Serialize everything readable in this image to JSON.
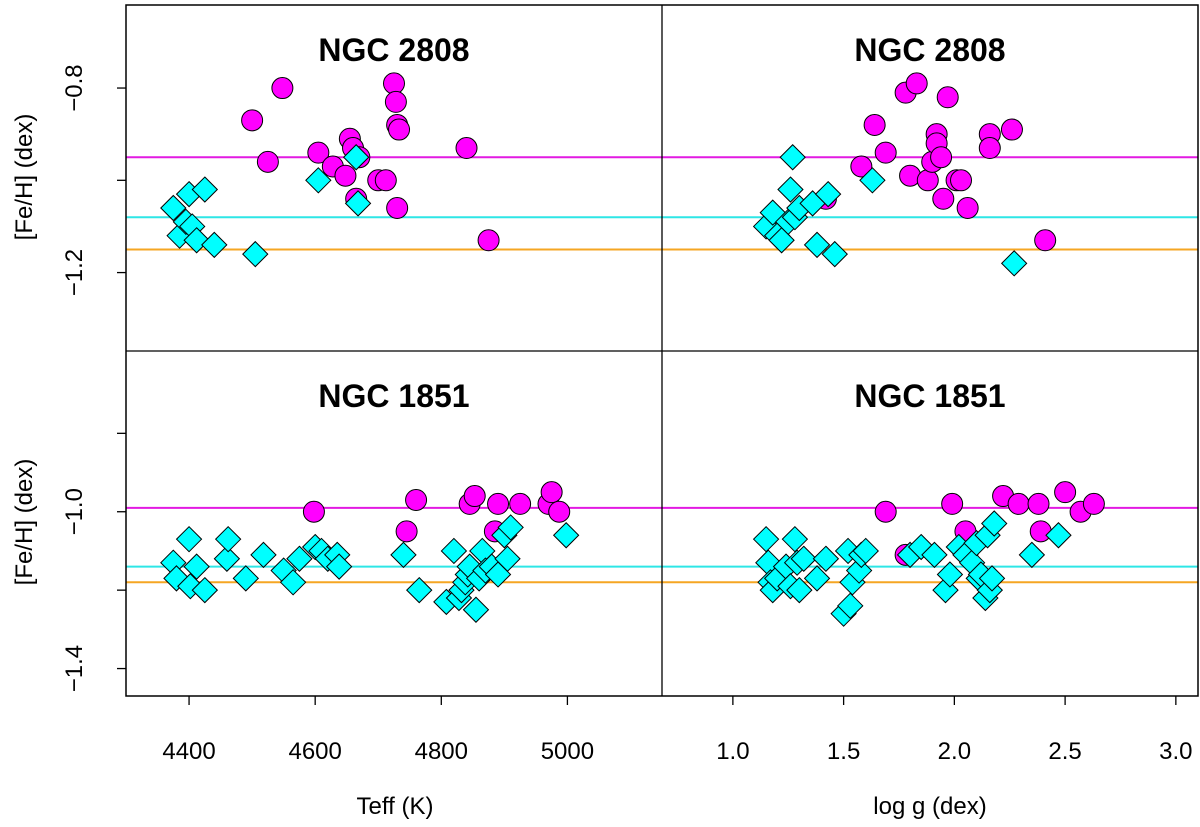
{
  "colors": {
    "magenta": "#ff00ff",
    "cyan": "#00ffff",
    "orange": "#ffa500",
    "magenta_line": "#e21ae2",
    "cyan_line": "#2ee6e6",
    "orange_line": "#f5a623"
  },
  "chart_data": [
    {
      "type": "scatter",
      "title": "NGC 2808",
      "xlabel": "Teff (K)",
      "ylabel": "[Fe/H] (dex)",
      "xlim": [
        4300,
        5150
      ],
      "ylim": [
        -1.37,
        -0.62
      ],
      "xticks": [
        4400,
        4600,
        4800,
        5000
      ],
      "yticks": [
        -1.2,
        -0.8
      ],
      "ytick_labels": [
        "−1.2",
        "−0.8"
      ],
      "hlines": [
        {
          "name": "magenta",
          "y": -0.95
        },
        {
          "name": "cyan",
          "y": -1.08
        },
        {
          "name": "orange",
          "y": -1.15
        }
      ],
      "series": [
        {
          "name": "magenta",
          "marker": "circle",
          "points": [
            [
              4500,
              -0.87
            ],
            [
              4525,
              -0.96
            ],
            [
              4548,
              -0.8
            ],
            [
              4605,
              -0.94
            ],
            [
              4628,
              -0.97
            ],
            [
              4648,
              -0.99
            ],
            [
              4655,
              -0.91
            ],
            [
              4660,
              -0.93
            ],
            [
              4665,
              -1.04
            ],
            [
              4670,
              -0.95
            ],
            [
              4700,
              -1.0
            ],
            [
              4712,
              -1.0
            ],
            [
              4725,
              -0.79
            ],
            [
              4728,
              -0.83
            ],
            [
              4730,
              -0.88
            ],
            [
              4733,
              -0.89
            ],
            [
              4730,
              -1.06
            ],
            [
              4840,
              -0.93
            ],
            [
              4875,
              -1.13
            ]
          ]
        },
        {
          "name": "cyan",
          "marker": "diamond",
          "points": [
            [
              4375,
              -1.06
            ],
            [
              4385,
              -1.12
            ],
            [
              4395,
              -1.09
            ],
            [
              4400,
              -1.03
            ],
            [
              4405,
              -1.1
            ],
            [
              4412,
              -1.13
            ],
            [
              4425,
              -1.02
            ],
            [
              4440,
              -1.14
            ],
            [
              4505,
              -1.16
            ],
            [
              4605,
              -1.0
            ],
            [
              4665,
              -0.95
            ],
            [
              4668,
              -1.05
            ]
          ]
        }
      ]
    },
    {
      "type": "scatter",
      "title": "NGC 2808",
      "xlabel": "log g (dex)",
      "ylabel": "",
      "xlim": [
        0.68,
        3.1
      ],
      "ylim": [
        -1.37,
        -0.62
      ],
      "xticks": [
        1.0,
        1.5,
        2.0,
        2.5,
        3.0
      ],
      "xtick_labels": [
        "1.0",
        "1.5",
        "2.0",
        "2.5",
        "3.0"
      ],
      "yticks": [],
      "hlines": [
        {
          "name": "magenta",
          "y": -0.95
        },
        {
          "name": "cyan",
          "y": -1.08
        },
        {
          "name": "orange",
          "y": -1.15
        }
      ],
      "series": [
        {
          "name": "magenta",
          "marker": "circle",
          "points": [
            [
              1.42,
              -1.04
            ],
            [
              1.58,
              -0.97
            ],
            [
              1.64,
              -0.88
            ],
            [
              1.69,
              -0.94
            ],
            [
              1.78,
              -0.81
            ],
            [
              1.8,
              -0.99
            ],
            [
              1.83,
              -0.79
            ],
            [
              1.88,
              -1.0
            ],
            [
              1.9,
              -0.96
            ],
            [
              1.92,
              -0.9
            ],
            [
              1.92,
              -0.92
            ],
            [
              1.94,
              -0.95
            ],
            [
              1.95,
              -1.04
            ],
            [
              1.97,
              -0.82
            ],
            [
              2.01,
              -1.0
            ],
            [
              2.03,
              -1.0
            ],
            [
              2.06,
              -1.06
            ],
            [
              2.16,
              -0.9
            ],
            [
              2.16,
              -0.93
            ],
            [
              2.26,
              -0.89
            ],
            [
              2.41,
              -1.13
            ]
          ]
        },
        {
          "name": "cyan",
          "marker": "diamond",
          "points": [
            [
              1.15,
              -1.1
            ],
            [
              1.18,
              -1.07
            ],
            [
              1.2,
              -1.12
            ],
            [
              1.22,
              -1.13
            ],
            [
              1.25,
              -1.09
            ],
            [
              1.26,
              -1.02
            ],
            [
              1.27,
              -0.95
            ],
            [
              1.28,
              -1.08
            ],
            [
              1.3,
              -1.06
            ],
            [
              1.36,
              -1.05
            ],
            [
              1.38,
              -1.14
            ],
            [
              1.43,
              -1.03
            ],
            [
              1.46,
              -1.16
            ],
            [
              1.63,
              -1.0
            ],
            [
              2.27,
              -1.18
            ]
          ]
        }
      ]
    },
    {
      "type": "scatter",
      "title": "NGC 1851",
      "xlabel": "Teff (K)",
      "ylabel": "[Fe/H] (dex)",
      "xlim": [
        4300,
        5150
      ],
      "ylim": [
        -1.47,
        -0.59
      ],
      "xticks": [
        4400,
        4600,
        4800,
        5000
      ],
      "yticks": [
        -1.4,
        -1.0
      ],
      "ytick_labels": [
        "−1.4",
        "−1.0"
      ],
      "hlines": [
        {
          "name": "magenta",
          "y": -0.99
        },
        {
          "name": "cyan",
          "y": -1.14
        },
        {
          "name": "orange",
          "y": -1.18
        }
      ],
      "series": [
        {
          "name": "magenta",
          "marker": "circle",
          "points": [
            [
              4598,
              -1.0
            ],
            [
              4745,
              -1.05
            ],
            [
              4760,
              -0.97
            ],
            [
              4845,
              -0.98
            ],
            [
              4853,
              -0.96
            ],
            [
              4885,
              -1.05
            ],
            [
              4890,
              -0.98
            ],
            [
              4925,
              -0.98
            ],
            [
              4970,
              -0.98
            ],
            [
              4975,
              -0.95
            ],
            [
              4987,
              -1.0
            ]
          ]
        },
        {
          "name": "cyan",
          "marker": "diamond",
          "points": [
            [
              4375,
              -1.13
            ],
            [
              4380,
              -1.17
            ],
            [
              4400,
              -1.07
            ],
            [
              4402,
              -1.19
            ],
            [
              4412,
              -1.14
            ],
            [
              4425,
              -1.2
            ],
            [
              4460,
              -1.12
            ],
            [
              4462,
              -1.07
            ],
            [
              4490,
              -1.17
            ],
            [
              4518,
              -1.11
            ],
            [
              4550,
              -1.15
            ],
            [
              4565,
              -1.18
            ],
            [
              4575,
              -1.12
            ],
            [
              4600,
              -1.09
            ],
            [
              4610,
              -1.1
            ],
            [
              4620,
              -1.12
            ],
            [
              4635,
              -1.11
            ],
            [
              4638,
              -1.14
            ],
            [
              4740,
              -1.11
            ],
            [
              4765,
              -1.2
            ],
            [
              4808,
              -1.23
            ],
            [
              4820,
              -1.1
            ],
            [
              4828,
              -1.22
            ],
            [
              4832,
              -1.2
            ],
            [
              4838,
              -1.18
            ],
            [
              4842,
              -1.16
            ],
            [
              4845,
              -1.14
            ],
            [
              4855,
              -1.25
            ],
            [
              4860,
              -1.17
            ],
            [
              4865,
              -1.1
            ],
            [
              4870,
              -1.15
            ],
            [
              4880,
              -1.14
            ],
            [
              4890,
              -1.16
            ],
            [
              4900,
              -1.06
            ],
            [
              4905,
              -1.12
            ],
            [
              4910,
              -1.04
            ],
            [
              4998,
              -1.06
            ]
          ]
        }
      ]
    },
    {
      "type": "scatter",
      "title": "NGC 1851",
      "xlabel": "log g (dex)",
      "ylabel": "",
      "xlim": [
        0.68,
        3.1
      ],
      "ylim": [
        -1.47,
        -0.59
      ],
      "xticks": [
        1.0,
        1.5,
        2.0,
        2.5,
        3.0
      ],
      "xtick_labels": [
        "1.0",
        "1.5",
        "2.0",
        "2.5",
        "3.0"
      ],
      "yticks": [],
      "hlines": [
        {
          "name": "magenta",
          "y": -0.99
        },
        {
          "name": "cyan",
          "y": -1.14
        },
        {
          "name": "orange",
          "y": -1.18
        }
      ],
      "series": [
        {
          "name": "magenta",
          "marker": "circle",
          "points": [
            [
              1.69,
              -1.0
            ],
            [
              1.78,
              -1.11
            ],
            [
              1.99,
              -0.98
            ],
            [
              2.05,
              -1.05
            ],
            [
              2.22,
              -0.96
            ],
            [
              2.29,
              -0.98
            ],
            [
              2.38,
              -0.98
            ],
            [
              2.39,
              -1.05
            ],
            [
              2.5,
              -0.95
            ],
            [
              2.57,
              -1.0
            ],
            [
              2.63,
              -0.98
            ]
          ]
        },
        {
          "name": "cyan",
          "marker": "diamond",
          "points": [
            [
              1.15,
              -1.07
            ],
            [
              1.16,
              -1.13
            ],
            [
              1.17,
              -1.18
            ],
            [
              1.18,
              -1.2
            ],
            [
              1.2,
              -1.17
            ],
            [
              1.24,
              -1.14
            ],
            [
              1.26,
              -1.19
            ],
            [
              1.28,
              -1.07
            ],
            [
              1.29,
              -1.13
            ],
            [
              1.3,
              -1.2
            ],
            [
              1.32,
              -1.12
            ],
            [
              1.38,
              -1.17
            ],
            [
              1.42,
              -1.12
            ],
            [
              1.5,
              -1.26
            ],
            [
              1.52,
              -1.1
            ],
            [
              1.53,
              -1.24
            ],
            [
              1.54,
              -1.18
            ],
            [
              1.57,
              -1.15
            ],
            [
              1.58,
              -1.11
            ],
            [
              1.6,
              -1.1
            ],
            [
              1.8,
              -1.11
            ],
            [
              1.85,
              -1.09
            ],
            [
              1.91,
              -1.11
            ],
            [
              1.96,
              -1.2
            ],
            [
              1.98,
              -1.16
            ],
            [
              2.02,
              -1.09
            ],
            [
              2.05,
              -1.11
            ],
            [
              2.08,
              -1.13
            ],
            [
              2.1,
              -1.08
            ],
            [
              2.11,
              -1.17
            ],
            [
              2.12,
              -1.16
            ],
            [
              2.14,
              -1.22
            ],
            [
              2.15,
              -1.06
            ],
            [
              2.16,
              -1.2
            ],
            [
              2.17,
              -1.17
            ],
            [
              2.18,
              -1.03
            ],
            [
              2.35,
              -1.11
            ],
            [
              2.47,
              -1.06
            ]
          ]
        }
      ]
    }
  ]
}
